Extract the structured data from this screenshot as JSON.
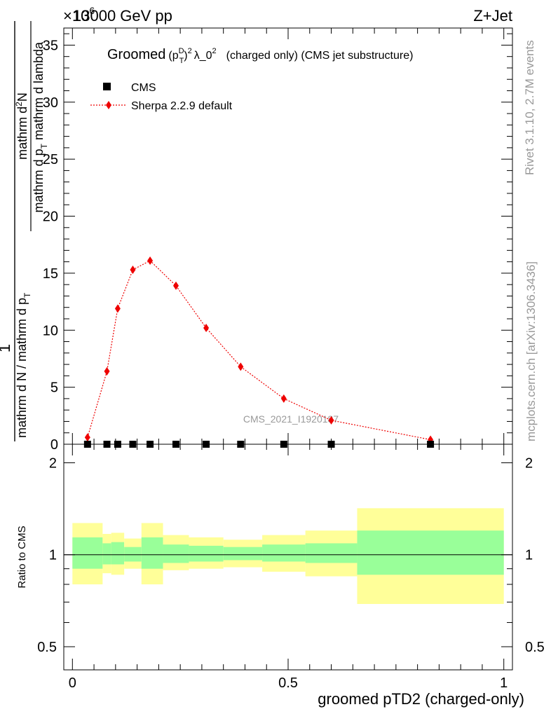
{
  "header": {
    "exponent": "×10",
    "exponent_power": "6",
    "energy": "13000 GeV pp",
    "process": "Z+Jet"
  },
  "side_labels": {
    "rivet": "Rivet 3.1.10,  2.7M events",
    "mcplots": "mcplots.cern.ch [arXiv:1306.3436]"
  },
  "watermark": "CMS_2021_I1920187",
  "main_title": {
    "pre": "Groomed",
    "p": "(p",
    "sup_d": "D",
    "sub_t": "T",
    "close": ")",
    "sup_2": "2",
    "lambda": "λ_0",
    "sup_2b": "2",
    "post": "(charged only) (CMS jet substructure)"
  },
  "y_axis_label": {
    "numerator_prefix": "1",
    "num_top": "mathrm d",
    "num_sup": "2",
    "num_n": "N",
    "den_a": "mathrm d p",
    "den_a_sub": "T",
    "den_b": " mathrm d lambda",
    "left_num": "1",
    "left_den": "mathrm d N / mathrm d p",
    "left_den_sub": "T"
  },
  "chart_data": [
    {
      "type": "scatter",
      "panel": "main",
      "series": [
        {
          "name": "CMS",
          "marker": "square",
          "color": "#000000",
          "x": [
            0.035,
            0.08,
            0.105,
            0.14,
            0.18,
            0.24,
            0.31,
            0.39,
            0.49,
            0.6,
            0.83
          ],
          "y": [
            0,
            0,
            0,
            0,
            0,
            0,
            0,
            0,
            0,
            0,
            0
          ]
        },
        {
          "name": "Sherpa 2.2.9 default",
          "marker": "diamond",
          "line": "dotted",
          "color": "#ee0000",
          "x": [
            0.035,
            0.08,
            0.105,
            0.14,
            0.18,
            0.24,
            0.31,
            0.39,
            0.49,
            0.6,
            0.83
          ],
          "y": [
            0.6,
            6.4,
            11.9,
            15.3,
            16.1,
            13.9,
            10.2,
            6.8,
            4.0,
            2.1,
            0.4
          ]
        }
      ],
      "xlim": [
        -0.02,
        1.02
      ],
      "ylim": [
        0,
        36.5
      ],
      "yticks": [
        0,
        5,
        10,
        15,
        20,
        25,
        30,
        35
      ]
    },
    {
      "type": "area",
      "panel": "ratio",
      "ylabel": "Ratio to CMS",
      "xlabel": "groomed pTD2 (charged-only)",
      "xlim": [
        -0.02,
        1.02
      ],
      "ylim": [
        0.42,
        2.3
      ],
      "yscale": "log",
      "yticks": [
        0.5,
        1,
        2
      ],
      "xticks": [
        0,
        0.5,
        1
      ],
      "reference_line": 1,
      "bins": [
        {
          "lo": 0.0,
          "hi": 0.07,
          "inner": [
            0.9,
            1.14
          ],
          "outer": [
            0.8,
            1.27
          ]
        },
        {
          "lo": 0.07,
          "hi": 0.09,
          "inner": [
            0.93,
            1.09
          ],
          "outer": [
            0.87,
            1.17
          ]
        },
        {
          "lo": 0.09,
          "hi": 0.12,
          "inner": [
            0.93,
            1.1
          ],
          "outer": [
            0.86,
            1.18
          ]
        },
        {
          "lo": 0.12,
          "hi": 0.16,
          "inner": [
            0.95,
            1.06
          ],
          "outer": [
            0.9,
            1.13
          ]
        },
        {
          "lo": 0.16,
          "hi": 0.21,
          "inner": [
            0.9,
            1.14
          ],
          "outer": [
            0.8,
            1.27
          ]
        },
        {
          "lo": 0.21,
          "hi": 0.27,
          "inner": [
            0.94,
            1.08
          ],
          "outer": [
            0.89,
            1.16
          ]
        },
        {
          "lo": 0.27,
          "hi": 0.35,
          "inner": [
            0.95,
            1.07
          ],
          "outer": [
            0.9,
            1.14
          ]
        },
        {
          "lo": 0.35,
          "hi": 0.44,
          "inner": [
            0.96,
            1.06
          ],
          "outer": [
            0.91,
            1.12
          ]
        },
        {
          "lo": 0.44,
          "hi": 0.54,
          "inner": [
            0.95,
            1.08
          ],
          "outer": [
            0.88,
            1.16
          ]
        },
        {
          "lo": 0.54,
          "hi": 0.66,
          "inner": [
            0.94,
            1.09
          ],
          "outer": [
            0.85,
            1.2
          ]
        },
        {
          "lo": 0.66,
          "hi": 1.0,
          "inner": [
            0.86,
            1.2
          ],
          "outer": [
            0.69,
            1.42
          ]
        }
      ],
      "inner_color": "#99ff99",
      "outer_color": "#ffff99"
    }
  ]
}
